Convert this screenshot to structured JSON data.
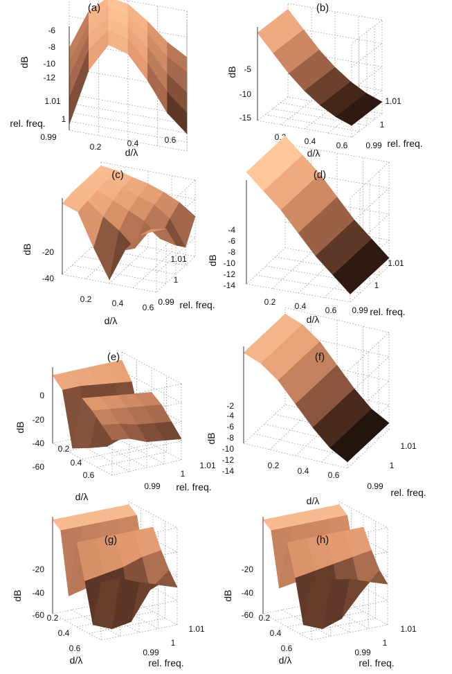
{
  "figure": {
    "axis_labels": {
      "x": "d/λ",
      "y": "rel. freq.",
      "z": "dB"
    },
    "colormap": [
      "#000000",
      "#4a2a1c",
      "#a2664b",
      "#e39a6f",
      "#ffc79a"
    ]
  },
  "chart_data": [
    {
      "type": "surface",
      "title": "(a)",
      "xlabel": "d/λ",
      "ylabel": "rel. freq.",
      "zlabel": "dB",
      "x_ticks": [
        "0.2",
        "0.4",
        "0.6"
      ],
      "y_ticks": [
        "0.99",
        "1",
        "1.01"
      ],
      "z_ticks": [
        "-6",
        "-8",
        "-10",
        "-12"
      ],
      "xlim": [
        0.05,
        0.6
      ],
      "ylim": [
        0.985,
        1.015
      ],
      "zlim": [
        -14,
        -5
      ],
      "z_grid": [
        [
          -13.5,
          -8.5,
          -6.0,
          -6.5,
          -8.5,
          -11.0,
          -12.5
        ],
        [
          -12.0,
          -7.5,
          -5.5,
          -6.0,
          -7.8,
          -10.0,
          -11.5
        ],
        [
          -11.0,
          -7.0,
          -5.2,
          -5.8,
          -7.2,
          -9.2,
          -10.5
        ],
        [
          -10.5,
          -6.8,
          -5.0,
          -5.5,
          -6.8,
          -8.5,
          -9.5
        ],
        [
          -10.0,
          -6.5,
          -5.0,
          -5.3,
          -6.5,
          -8.0,
          -9.0
        ]
      ]
    },
    {
      "type": "surface",
      "title": "(b)",
      "xlabel": "d/λ",
      "ylabel": "rel. freq.",
      "zlabel": "dB",
      "x_ticks": [
        "0.2",
        "0.4",
        "0.6"
      ],
      "y_ticks": [
        "0.99",
        "1",
        "1.01"
      ],
      "z_ticks": [
        "-5",
        "-10",
        "-15"
      ],
      "xlim": [
        0.05,
        0.6
      ],
      "ylim": [
        0.985,
        1.015
      ],
      "zlim": [
        -16,
        0
      ],
      "z_grid": [
        [
          -1,
          -4,
          -7,
          -9.5,
          -11.5,
          -13,
          -14
        ],
        [
          -1,
          -4,
          -7,
          -9.5,
          -11.5,
          -13,
          -14
        ],
        [
          -1,
          -4,
          -7,
          -9.5,
          -11.5,
          -13,
          -14
        ],
        [
          -1,
          -4,
          -7,
          -9.5,
          -11.5,
          -13,
          -14
        ],
        [
          -1,
          -4,
          -7,
          -9.5,
          -11.5,
          -13,
          -14
        ]
      ]
    },
    {
      "type": "surface",
      "title": "(c)",
      "xlabel": "d/λ",
      "ylabel": "rel. freq.",
      "zlabel": "dB",
      "x_ticks": [
        "0.2",
        "0.4",
        "0.6"
      ],
      "y_ticks": [
        "0.99",
        "1",
        "1.01"
      ],
      "z_ticks": [
        "-20",
        "-40"
      ],
      "xlim": [
        0.05,
        0.6
      ],
      "ylim": [
        0.985,
        1.015
      ],
      "zlim": [
        -42,
        0
      ],
      "z_grid": [
        [
          -3,
          -6,
          -24,
          -40,
          -22,
          -12,
          -8
        ],
        [
          -2,
          -5,
          -12,
          -18,
          -26,
          -14,
          -12
        ],
        [
          -2,
          -4,
          -8,
          -12,
          -16,
          -24,
          -26
        ],
        [
          -2,
          -3,
          -6,
          -9,
          -12,
          -18,
          -32
        ],
        [
          -2,
          -3,
          -5,
          -7,
          -10,
          -14,
          -20
        ]
      ]
    },
    {
      "type": "surface",
      "title": "(d)",
      "xlabel": "d/λ",
      "ylabel": "rel. freq.",
      "zlabel": "dB",
      "x_ticks": [
        "0.2",
        "0.4",
        "0.6"
      ],
      "y_ticks": [
        "0.99",
        "1",
        "1.01"
      ],
      "z_ticks": [
        "-4",
        "-6",
        "-8",
        "-10",
        "-12",
        "-14"
      ],
      "xlim": [
        0.05,
        0.6
      ],
      "ylim": [
        0.985,
        1.015
      ],
      "zlim": [
        -15,
        -2
      ],
      "z_grid": [
        [
          -1,
          -3,
          -5,
          -7.5,
          -10,
          -12,
          -14
        ],
        [
          -1,
          -3,
          -5,
          -7.5,
          -10,
          -12,
          -14
        ],
        [
          -1,
          -3,
          -5,
          -7.5,
          -10,
          -12,
          -14
        ],
        [
          -1,
          -3,
          -5,
          -7.5,
          -10,
          -12,
          -14
        ],
        [
          -1,
          -3,
          -5,
          -7.5,
          -10,
          -12,
          -14
        ]
      ]
    },
    {
      "type": "surface",
      "title": "(e)",
      "xlabel": "d/λ",
      "ylabel": "rel. freq.",
      "zlabel": "dB",
      "x_ticks": [
        "0.2",
        "0.4",
        "0.6"
      ],
      "y_ticks": [
        "0.99",
        "1",
        "1.01"
      ],
      "z_ticks": [
        "0",
        "-20",
        "-40",
        "-60"
      ],
      "xlim": [
        0.05,
        0.6
      ],
      "ylim": [
        0.985,
        1.015
      ],
      "zlim": [
        -60,
        5
      ],
      "z_grid": [
        [
          -2,
          -10,
          -55,
          -8,
          -14,
          -22,
          -30
        ],
        [
          -2,
          -10,
          -58,
          -10,
          -16,
          -24,
          -32
        ],
        [
          -2,
          -12,
          -60,
          -12,
          -18,
          -28,
          -38
        ],
        [
          -2,
          -14,
          -55,
          -14,
          -20,
          -30,
          -40
        ],
        [
          -2,
          -16,
          -50,
          -16,
          -22,
          -32,
          -42
        ]
      ]
    },
    {
      "type": "surface",
      "title": "(f)",
      "xlabel": "d/λ",
      "ylabel": "rel. freq.",
      "zlabel": "dB",
      "x_ticks": [
        "0.2",
        "0.4",
        "0.6"
      ],
      "y_ticks": [
        "0.99",
        "1",
        "1.01"
      ],
      "z_ticks": [
        "-2",
        "-4",
        "-6",
        "-8",
        "-10",
        "-12",
        "-14"
      ],
      "xlim": [
        0.05,
        0.6
      ],
      "ylim": [
        0.985,
        1.015
      ],
      "zlim": [
        -15,
        0
      ],
      "z_grid": [
        [
          -1,
          -2,
          -4,
          -7,
          -10,
          -12.5,
          -14
        ],
        [
          -1,
          -2,
          -4,
          -7,
          -10,
          -12.5,
          -14
        ],
        [
          -1,
          -2,
          -4,
          -7,
          -10,
          -12.5,
          -14
        ],
        [
          -1,
          -2,
          -4,
          -7,
          -10,
          -12.5,
          -14
        ],
        [
          -1,
          -2,
          -4,
          -7,
          -10,
          -12.5,
          -14
        ]
      ]
    },
    {
      "type": "surface",
      "title": "(g)",
      "xlabel": "d/λ",
      "ylabel": "rel. freq.",
      "zlabel": "dB",
      "x_ticks": [
        "0.2",
        "0.4",
        "0.6"
      ],
      "y_ticks": [
        "0.99",
        "1",
        "1.01"
      ],
      "z_ticks": [
        "-20",
        "-40",
        "-60"
      ],
      "xlim": [
        0.05,
        0.6
      ],
      "ylim": [
        0.985,
        1.015
      ],
      "zlim": [
        -62,
        0
      ],
      "z_grid": [
        [
          -2,
          -6,
          -45,
          -8,
          -30,
          -55,
          -25
        ],
        [
          -2,
          -6,
          -42,
          -8,
          -28,
          -60,
          -25
        ],
        [
          -2,
          -6,
          -40,
          -8,
          -26,
          -58,
          -30
        ],
        [
          -2,
          -6,
          -38,
          -8,
          -22,
          -40,
          -34
        ],
        [
          -2,
          -6,
          -36,
          -8,
          -20,
          -30,
          -38
        ]
      ]
    },
    {
      "type": "surface",
      "title": "(h)",
      "xlabel": "d/λ",
      "ylabel": "rel. freq.",
      "zlabel": "dB",
      "x_ticks": [
        "0.2",
        "0.4",
        "0.6"
      ],
      "y_ticks": [
        "0.99",
        "1",
        "1.01"
      ],
      "z_ticks": [
        "-20",
        "-40",
        "-60"
      ],
      "xlim": [
        0.05,
        0.6
      ],
      "ylim": [
        0.985,
        1.015
      ],
      "zlim": [
        -62,
        0
      ],
      "z_grid": [
        [
          -2,
          -6,
          -40,
          -8,
          -28,
          -55,
          -25
        ],
        [
          -2,
          -6,
          -38,
          -8,
          -26,
          -60,
          -26
        ],
        [
          -2,
          -6,
          -36,
          -8,
          -24,
          -56,
          -28
        ],
        [
          -2,
          -6,
          -34,
          -8,
          -22,
          -42,
          -32
        ],
        [
          -2,
          -6,
          -32,
          -8,
          -20,
          -30,
          -36
        ]
      ]
    }
  ]
}
